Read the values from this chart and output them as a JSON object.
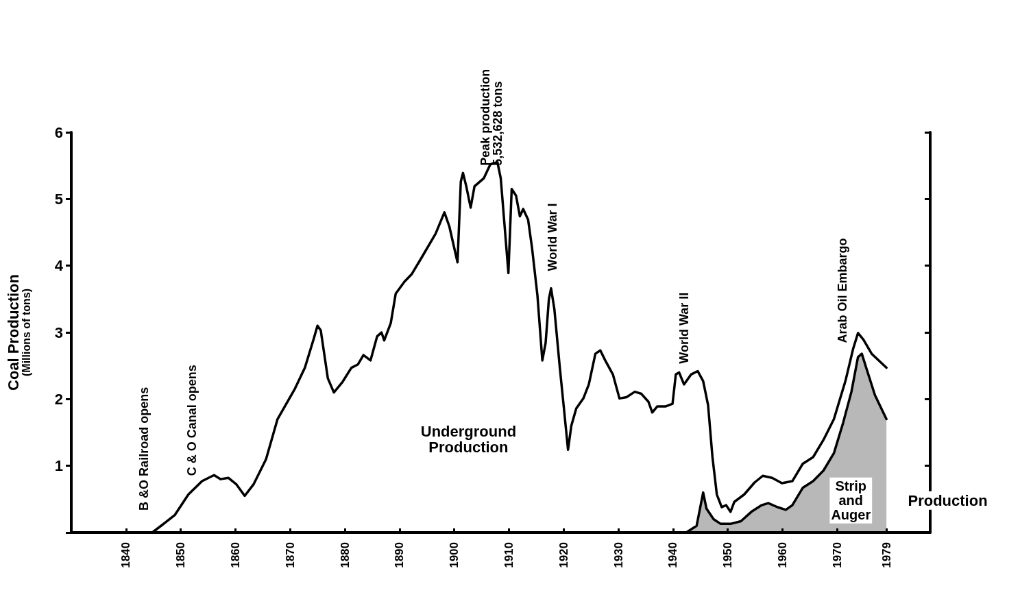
{
  "chart_data": {
    "type": "line",
    "ylabel": "Coal Production\n(Millions of tons)",
    "xlim": [
      1830,
      1987
    ],
    "xticks": [
      1840,
      1850,
      1860,
      1870,
      1880,
      1890,
      1900,
      1910,
      1920,
      1930,
      1940,
      1950,
      1960,
      1970,
      1979
    ],
    "ylim": [
      0,
      6
    ],
    "yticks": [
      {
        "value": 0,
        "label": null
      },
      1,
      2,
      3,
      4,
      5,
      6
    ],
    "grid": false,
    "marker": "none",
    "line_style": "solid",
    "series": [
      {
        "color": "#000000",
        "x": [
          1844.8,
          1846.4,
          1848.9,
          1851.4,
          1853.9,
          1856.1,
          1857.3,
          1858.7,
          1860.2,
          1861.7,
          1863.3,
          1865.6,
          1867.7,
          1870.9,
          1872.7,
          1874.3,
          1875,
          1875.6,
          1876.9,
          1878,
          1879.6,
          1881.2,
          1882.4,
          1883.4,
          1884.7,
          1885.9,
          1886.7,
          1887.2,
          1888.4,
          1889.3,
          1890.9,
          1892.2,
          1894.1,
          1896.6,
          1898.2,
          1899.1,
          1900.6,
          1901.2,
          1901.6,
          1902.2,
          1903,
          1903.7,
          1905.4,
          1906.6,
          1907.9,
          1908.5,
          1909.9,
          1910.5,
          1911.3,
          1912,
          1912.6,
          1913.5,
          1914.2,
          1915.2,
          1916.1,
          1916.7,
          1917.3,
          1917.7,
          1918.3,
          1919.3,
          1920,
          1920.8,
          1921.4,
          1922.3,
          1923.6,
          1924.6,
          1925.8,
          1926.7,
          1927.6,
          1929,
          1930.2,
          1931.5,
          1933,
          1934.2,
          1935.5,
          1936.2,
          1937.1,
          1938.6,
          1939.9,
          1940.5,
          1941.1,
          1942,
          1943.3,
          1944.5,
          1945.5,
          1946.4,
          1947.2,
          1948,
          1948.9,
          1949.7,
          1950.5,
          1951.2,
          1953,
          1954.9,
          1956.4,
          1958.1,
          1959.9,
          1961.8,
          1963.7,
          1965.6,
          1967.5,
          1969.4,
          1971.5,
          1972.9,
          1973.8,
          1974.8,
          1976.3,
          1979
        ],
        "values": [
          0,
          0.1,
          0.26,
          0.57,
          0.77,
          0.86,
          0.8,
          0.82,
          0.72,
          0.55,
          0.72,
          1.1,
          1.7,
          2.16,
          2.47,
          2.9,
          3.1,
          3.03,
          2.31,
          2.1,
          2.26,
          2.47,
          2.52,
          2.66,
          2.58,
          2.94,
          3.0,
          2.88,
          3.14,
          3.58,
          3.76,
          3.87,
          4.13,
          4.48,
          4.8,
          4.59,
          4.05,
          5.26,
          5.39,
          5.19,
          4.87,
          5.19,
          5.31,
          5.52,
          5.55,
          5.31,
          3.89,
          5.15,
          5.05,
          4.74,
          4.85,
          4.69,
          4.28,
          3.56,
          2.58,
          2.84,
          3.5,
          3.66,
          3.35,
          2.47,
          1.9,
          1.24,
          1.6,
          1.86,
          2.01,
          2.22,
          2.68,
          2.73,
          2.58,
          2.37,
          2.01,
          2.03,
          2.11,
          2.08,
          1.96,
          1.8,
          1.89,
          1.89,
          1.93,
          2.37,
          2.4,
          2.22,
          2.37,
          2.42,
          2.27,
          1.91,
          1.13,
          0.57,
          0.38,
          0.41,
          0.31,
          0.46,
          0.57,
          0.75,
          0.85,
          0.82,
          0.74,
          0.77,
          1.03,
          1.13,
          1.39,
          1.7,
          2.27,
          2.75,
          2.99,
          2.89,
          2.68,
          2.47
        ]
      },
      {
        "type": "area",
        "color": "#000000",
        "x": [
          1942.4,
          1944.3,
          1945.5,
          1946.1,
          1947.4,
          1948.7,
          1950.5,
          1952.4,
          1954.3,
          1956.2,
          1957.4,
          1959.1,
          1960.6,
          1961.8,
          1963.7,
          1965.6,
          1967.5,
          1969.4,
          1971.1,
          1972.6,
          1973.8,
          1974.5,
          1975.3,
          1976.9,
          1979
        ],
        "values": [
          0,
          0.1,
          0.6,
          0.36,
          0.2,
          0.13,
          0.13,
          0.17,
          0.31,
          0.41,
          0.44,
          0.38,
          0.34,
          0.41,
          0.67,
          0.77,
          0.93,
          1.19,
          1.65,
          2.11,
          2.63,
          2.68,
          2.47,
          2.06,
          1.7
        ]
      }
    ],
    "annotations": [
      "B &O Railroad opens",
      "C & O Canal opens",
      {
        "text": "Peak production\n5,532,628 tons",
        "x": 1906.8,
        "y": 5.5
      },
      "World War I",
      "World War II",
      "Arab Oil Embargo",
      "Underground\nProduction",
      "Strip\nand\nAuger",
      "Production"
    ]
  }
}
